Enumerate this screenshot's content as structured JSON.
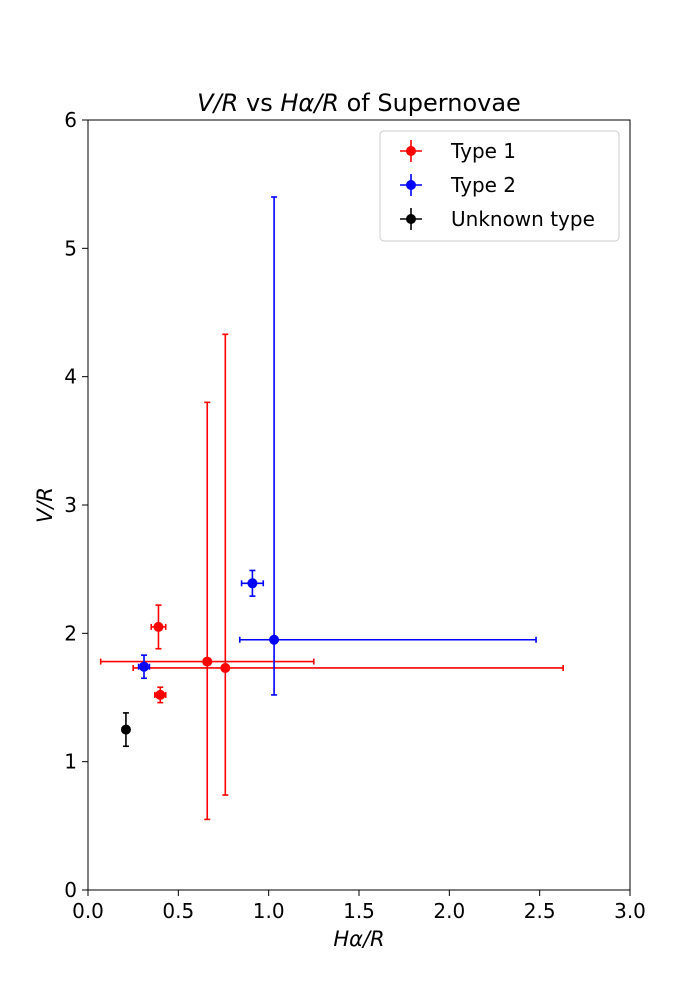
{
  "chart_data": {
    "type": "scatter",
    "title_parts": {
      "a": "V/R",
      "b": " vs ",
      "c": "Hα/R",
      "d": " of Supernovae"
    },
    "xlabel": "Hα/R",
    "ylabel": "V/R",
    "xlim": [
      0.0,
      3.0
    ],
    "ylim": [
      0,
      6
    ],
    "x_ticks": [
      0.0,
      0.5,
      1.0,
      1.5,
      2.0,
      2.5,
      3.0
    ],
    "x_tick_labels": [
      "0.0",
      "0.5",
      "1.0",
      "1.5",
      "2.0",
      "2.5",
      "3.0"
    ],
    "y_ticks": [
      0,
      1,
      2,
      3,
      4,
      5,
      6
    ],
    "y_tick_labels": [
      "0",
      "1",
      "2",
      "3",
      "4",
      "5",
      "6"
    ],
    "grid": false,
    "legend_position": "top-right",
    "series": [
      {
        "name": "Type 1",
        "color": "#ff0000",
        "points": [
          {
            "x": 0.39,
            "y": 2.05,
            "xerr": 0.04,
            "yerr": 0.17
          },
          {
            "x": 0.4,
            "y": 1.52,
            "xerr": 0.03,
            "yerr": 0.06
          },
          {
            "x": 0.66,
            "y": 1.78,
            "xerr": 0.59,
            "yerr_low": 1.23,
            "yerr_high": 2.02
          },
          {
            "x": 0.76,
            "y": 1.73,
            "xerr_low": 0.51,
            "xerr_high": 1.87,
            "yerr_low": 0.99,
            "yerr_high": 2.6
          }
        ]
      },
      {
        "name": "Type 2",
        "color": "#0000ff",
        "points": [
          {
            "x": 0.31,
            "y": 1.74,
            "xerr": 0.03,
            "yerr": 0.09
          },
          {
            "x": 0.91,
            "y": 2.39,
            "xerr": 0.06,
            "yerr": 0.1
          },
          {
            "x": 1.03,
            "y": 1.95,
            "xerr_low": 0.19,
            "xerr_high": 1.45,
            "yerr_low": 0.43,
            "yerr_high": 3.45
          }
        ]
      },
      {
        "name": "Unknown type",
        "color": "#000000",
        "points": [
          {
            "x": 0.21,
            "y": 1.25,
            "xerr": 0.01,
            "yerr": 0.13
          }
        ]
      }
    ]
  }
}
